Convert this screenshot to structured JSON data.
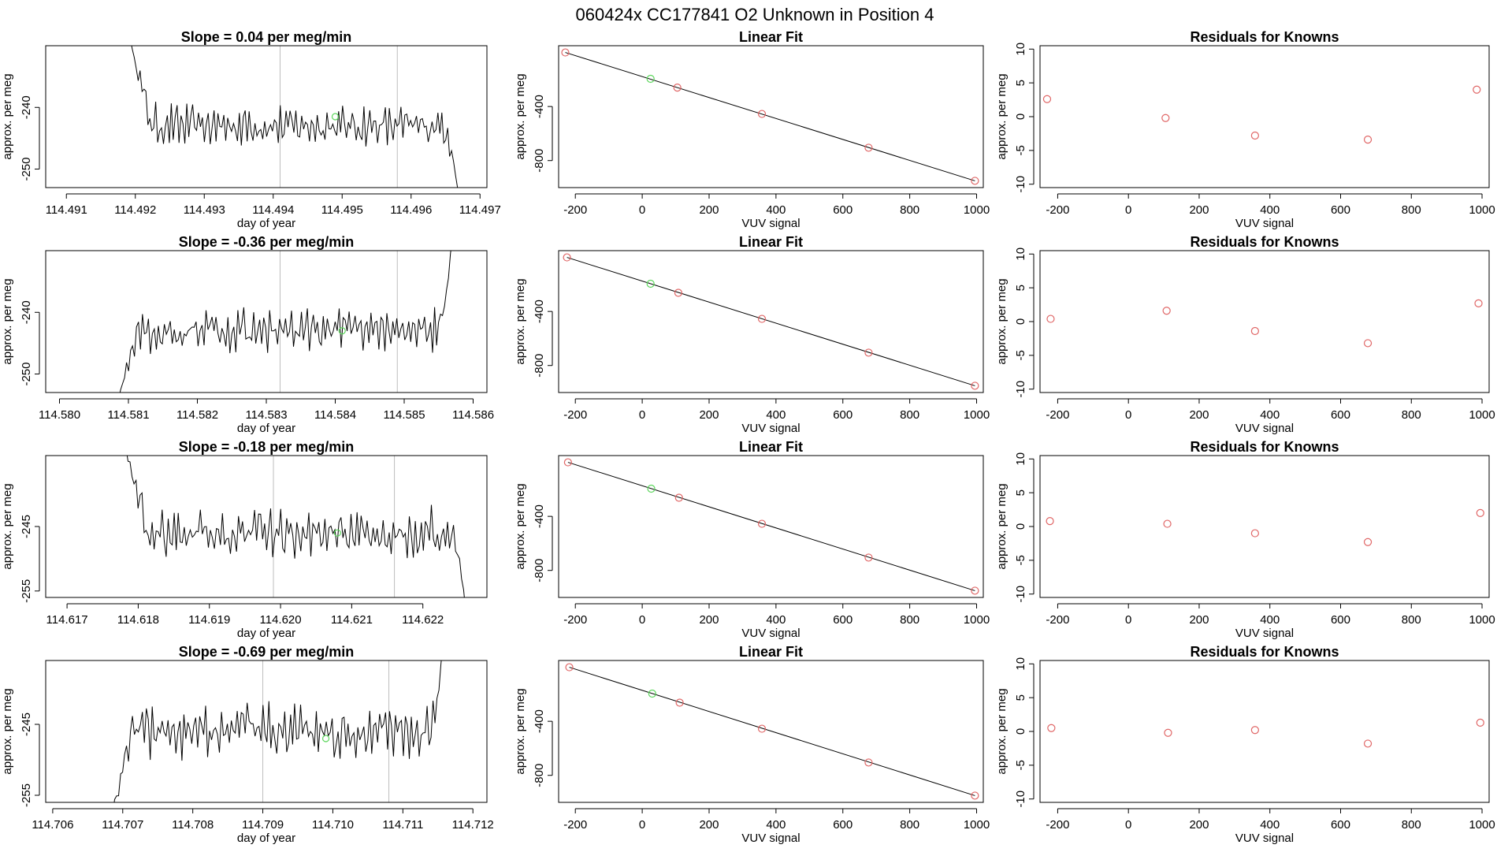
{
  "figure_title": "060424x      CC177841   O2 Unknown in Position  4",
  "colors": {
    "known_point": "#e06666",
    "unknown_point": "#5cd65c",
    "line": "#000000",
    "marker_line": "#bdbdbd"
  },
  "chart_data": [
    {
      "type": "line",
      "title": "Slope =  0.04  per meg/min",
      "xlabel": "day of year",
      "ylabel": "approx. per meg",
      "xlim": [
        114.4907,
        114.4971
      ],
      "ylim": [
        -253,
        -230
      ],
      "xticks": [
        "114.491",
        "114.492",
        "114.493",
        "114.494",
        "114.495",
        "114.496",
        "114.497"
      ],
      "yticks": [
        "-250",
        "-240"
      ],
      "series_start": 114.4919,
      "series_end": 114.4967,
      "start_value": -228,
      "end_value": -256,
      "base_level": -243,
      "noise_amp": 2.5,
      "markers": [
        114.4941,
        114.4958
      ],
      "unknown_point": [
        114.4949,
        -241.5
      ]
    },
    {
      "type": "scatter",
      "title": "Linear Fit",
      "xlabel": "VUV signal",
      "ylabel": "approx. per meg",
      "xlim": [
        -250,
        1020
      ],
      "ylim": [
        -1000,
        50
      ],
      "xticks": [
        "-200",
        "0",
        "200",
        "400",
        "600",
        "800",
        "1000"
      ],
      "yticks": [
        "-800",
        "-400"
      ],
      "fit": [
        [
          -230,
          0
        ],
        [
          995,
          -950
        ]
      ],
      "knowns": [
        [
          -230,
          0
        ],
        [
          105,
          -260
        ],
        [
          358,
          -455
        ],
        [
          677,
          -705
        ],
        [
          995,
          -950
        ]
      ],
      "unknown": [
        [
          25,
          -195
        ]
      ]
    },
    {
      "type": "scatter",
      "title": "Residuals for Knowns",
      "xlabel": "VUV signal",
      "ylabel": "approx. per meg",
      "xlim": [
        -250,
        1020
      ],
      "ylim": [
        -10.5,
        10.5
      ],
      "xticks": [
        "-200",
        "0",
        "200",
        "400",
        "600",
        "800",
        "1000"
      ],
      "yticks": [
        "-10",
        "-5",
        "0",
        "5",
        "10"
      ],
      "points": [
        [
          -230,
          2.6
        ],
        [
          105,
          -0.2
        ],
        [
          358,
          -2.8
        ],
        [
          677,
          -3.4
        ],
        [
          985,
          4.0
        ]
      ]
    },
    {
      "type": "line",
      "title": "Slope =  -0.36  per meg/min",
      "xlabel": "day of year",
      "ylabel": "approx. per meg",
      "xlim": [
        114.5798,
        114.5862
      ],
      "ylim": [
        -253,
        -230
      ],
      "xticks": [
        "114.580",
        "114.581",
        "114.582",
        "114.583",
        "114.584",
        "114.585",
        "114.586"
      ],
      "yticks": [
        "-250",
        "-240"
      ],
      "series_start": 114.5808,
      "series_end": 114.5857,
      "start_value": -256,
      "end_value": -228,
      "base_level": -243,
      "noise_amp": 2.5,
      "markers": [
        114.5832,
        114.5849
      ],
      "unknown_point": [
        114.5841,
        -243
      ]
    },
    {
      "type": "scatter",
      "title": "Linear Fit",
      "xlabel": "VUV signal",
      "ylabel": "approx. per meg",
      "xlim": [
        -250,
        1020
      ],
      "ylim": [
        -1000,
        50
      ],
      "xticks": [
        "-200",
        "0",
        "200",
        "400",
        "600",
        "800",
        "1000"
      ],
      "yticks": [
        "-800",
        "-400"
      ],
      "fit": [
        [
          -225,
          0
        ],
        [
          995,
          -950
        ]
      ],
      "knowns": [
        [
          -225,
          0
        ],
        [
          108,
          -262
        ],
        [
          358,
          -455
        ],
        [
          677,
          -705
        ],
        [
          995,
          -950
        ]
      ],
      "unknown": [
        [
          25,
          -195
        ]
      ]
    },
    {
      "type": "scatter",
      "title": "Residuals for Knowns",
      "xlabel": "VUV signal",
      "ylabel": "approx. per meg",
      "xlim": [
        -250,
        1020
      ],
      "ylim": [
        -10.5,
        10.5
      ],
      "xticks": [
        "-200",
        "0",
        "200",
        "400",
        "600",
        "800",
        "1000"
      ],
      "yticks": [
        "-10",
        "-5",
        "0",
        "5",
        "10"
      ],
      "points": [
        [
          -220,
          0.4
        ],
        [
          108,
          1.6
        ],
        [
          358,
          -1.4
        ],
        [
          677,
          -3.2
        ],
        [
          990,
          2.7
        ]
      ]
    },
    {
      "type": "line",
      "title": "Slope =  -0.18  per meg/min",
      "xlabel": "day of year",
      "ylabel": "approx. per meg",
      "xlim": [
        114.6167,
        114.6229
      ],
      "ylim": [
        -256,
        -234
      ],
      "xticks": [
        "114.617",
        "114.618",
        "114.619",
        "114.620",
        "114.621",
        "114.622"
      ],
      "yticks": [
        "-255",
        "-245"
      ],
      "series_start": 114.6178,
      "series_end": 114.6226,
      "start_value": -232,
      "end_value": -258,
      "base_level": -246,
      "noise_amp": 2.8,
      "markers": [
        114.6199,
        114.6216
      ],
      "unknown_point": [
        114.6208,
        -246
      ]
    },
    {
      "type": "scatter",
      "title": "Linear Fit",
      "xlabel": "VUV signal",
      "ylabel": "approx. per meg",
      "xlim": [
        -250,
        1020
      ],
      "ylim": [
        -1000,
        50
      ],
      "xticks": [
        "-200",
        "0",
        "200",
        "400",
        "600",
        "800",
        "1000"
      ],
      "yticks": [
        "-800",
        "-400"
      ],
      "fit": [
        [
          -222,
          0
        ],
        [
          995,
          -950
        ]
      ],
      "knowns": [
        [
          -222,
          0
        ],
        [
          110,
          -262
        ],
        [
          358,
          -455
        ],
        [
          677,
          -705
        ],
        [
          995,
          -950
        ]
      ],
      "unknown": [
        [
          27,
          -195
        ]
      ]
    },
    {
      "type": "scatter",
      "title": "Residuals for Knowns",
      "xlabel": "VUV signal",
      "ylabel": "approx. per meg",
      "xlim": [
        -250,
        1020
      ],
      "ylim": [
        -10.5,
        10.5
      ],
      "xticks": [
        "-200",
        "0",
        "200",
        "400",
        "600",
        "800",
        "1000"
      ],
      "yticks": [
        "-10",
        "-5",
        "0",
        "5",
        "10"
      ],
      "points": [
        [
          -222,
          0.8
        ],
        [
          110,
          0.4
        ],
        [
          358,
          -1.0
        ],
        [
          677,
          -2.3
        ],
        [
          995,
          2.0
        ]
      ]
    },
    {
      "type": "line",
      "title": "Slope =  -0.69  per meg/min",
      "xlabel": "day of year",
      "ylabel": "approx. per meg",
      "xlim": [
        114.7059,
        114.7122
      ],
      "ylim": [
        -256,
        -236
      ],
      "xticks": [
        "114.706",
        "114.707",
        "114.708",
        "114.709",
        "114.710",
        "114.711",
        "114.712"
      ],
      "yticks": [
        "-255",
        "-245"
      ],
      "series_start": 114.7068,
      "series_end": 114.7116,
      "start_value": -260,
      "end_value": -230,
      "base_level": -246,
      "noise_amp": 2.8,
      "markers": [
        114.709,
        114.7108
      ],
      "unknown_point": [
        114.7099,
        -247
      ]
    },
    {
      "type": "scatter",
      "title": "Linear Fit",
      "xlabel": "VUV signal",
      "ylabel": "approx. per meg",
      "xlim": [
        -250,
        1020
      ],
      "ylim": [
        -1000,
        50
      ],
      "xticks": [
        "-200",
        "0",
        "200",
        "400",
        "600",
        "800",
        "1000"
      ],
      "yticks": [
        "-800",
        "-400"
      ],
      "fit": [
        [
          -218,
          0
        ],
        [
          995,
          -950
        ]
      ],
      "knowns": [
        [
          -218,
          0
        ],
        [
          112,
          -262
        ],
        [
          358,
          -455
        ],
        [
          677,
          -705
        ],
        [
          995,
          -950
        ]
      ],
      "unknown": [
        [
          30,
          -195
        ]
      ]
    },
    {
      "type": "scatter",
      "title": "Residuals for Knowns",
      "xlabel": "VUV signal",
      "ylabel": "approx. per meg",
      "xlim": [
        -250,
        1020
      ],
      "ylim": [
        -10.5,
        10.5
      ],
      "xticks": [
        "-200",
        "0",
        "200",
        "400",
        "600",
        "800",
        "1000"
      ],
      "yticks": [
        "-10",
        "-5",
        "0",
        "5",
        "10"
      ],
      "points": [
        [
          -218,
          0.5
        ],
        [
          112,
          -0.2
        ],
        [
          358,
          0.2
        ],
        [
          677,
          -1.8
        ],
        [
          995,
          1.3
        ]
      ]
    }
  ]
}
